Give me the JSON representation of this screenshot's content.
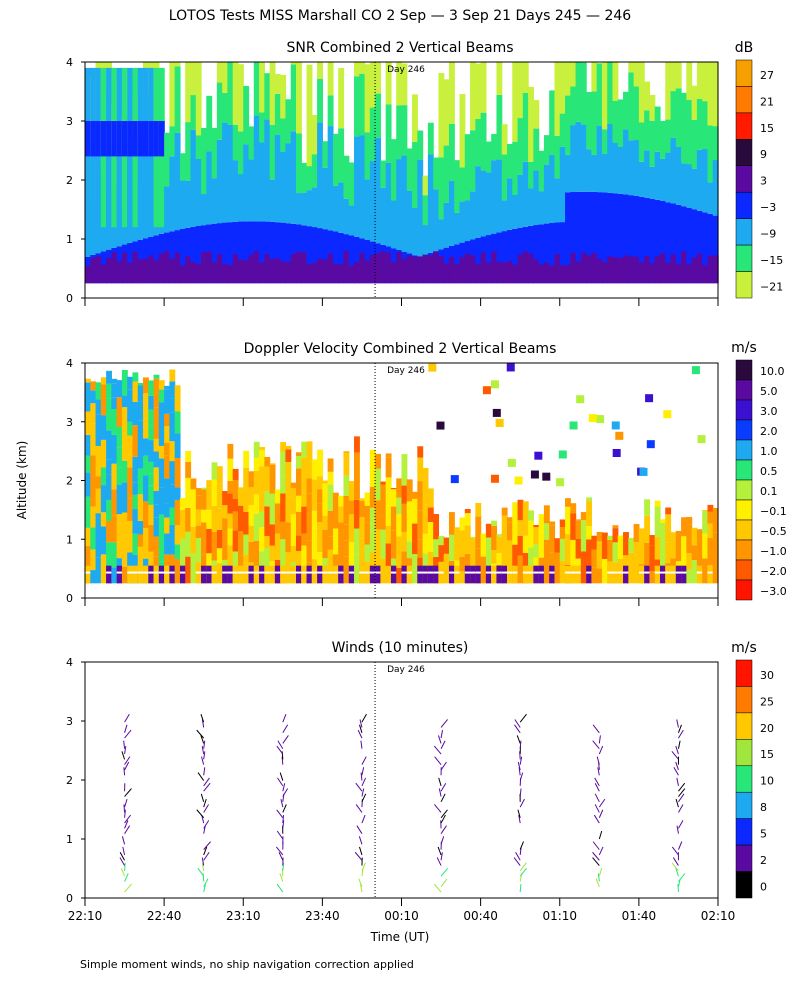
{
  "title": "LOTOS Tests MISS Marshall CO   2 Sep —  3 Sep 21 Days 245 — 246",
  "ylabel": "Altitude (km)",
  "xlabel": "Time (UT)",
  "footer": "Simple moment winds, no ship navigation correction applied",
  "day_marker": "Day 246",
  "x_ticks": [
    "22:10",
    "22:40",
    "23:10",
    "23:40",
    "00:10",
    "00:40",
    "01:10",
    "01:40",
    "02:10"
  ],
  "y_ticks": [
    "0",
    "1",
    "2",
    "3",
    "4"
  ],
  "chart_data": [
    {
      "type": "heatmap",
      "title": "SNR Combined 2 Vertical Beams",
      "unit": "dB",
      "ylim": [
        0,
        4
      ],
      "colorbar": {
        "labels": [
          "27",
          "21",
          "15",
          "9",
          "3",
          "−3",
          "−9",
          "−15",
          "−21"
        ],
        "colors": [
          "#f5a000",
          "#ff7a00",
          "#ff1a00",
          "#2a0a3c",
          "#5a0aa0",
          "#0a28ff",
          "#1eaaf0",
          "#28e678",
          "#c8f03c"
        ]
      }
    },
    {
      "type": "heatmap",
      "title": "Doppler Velocity Combined 2 Vertical Beams",
      "unit": "m/s",
      "ylim": [
        0,
        4
      ],
      "colorbar": {
        "labels": [
          "10.0",
          "5.0",
          "3.0",
          "2.0",
          "1.0",
          "0.5",
          "0.1",
          "−0.1",
          "−0.5",
          "−1.0",
          "−2.0",
          "−3.0"
        ],
        "colors": [
          "#2a0a3c",
          "#5a0aa0",
          "#3c10d0",
          "#0a3cff",
          "#1eaaf0",
          "#28e678",
          "#b4f03c",
          "#fff000",
          "#ffc800",
          "#ff9600",
          "#ff5a00",
          "#ff1400"
        ]
      }
    },
    {
      "type": "scatter",
      "title": "Winds (10 minutes)",
      "unit": "m/s",
      "ylim": [
        0,
        4
      ],
      "colorbar": {
        "labels": [
          "30",
          "25",
          "20",
          "15",
          "10",
          "8",
          "5",
          "2",
          "0"
        ],
        "colors": [
          "#ff1400",
          "#ff7a00",
          "#ffc800",
          "#a0e63c",
          "#28e678",
          "#1eaaf0",
          "#0a28ff",
          "#5a0aa0",
          "#000000"
        ]
      },
      "profile_times": [
        "22:25",
        "22:55",
        "23:25",
        "23:55",
        "00:25",
        "00:55",
        "01:25",
        "01:55"
      ]
    }
  ]
}
